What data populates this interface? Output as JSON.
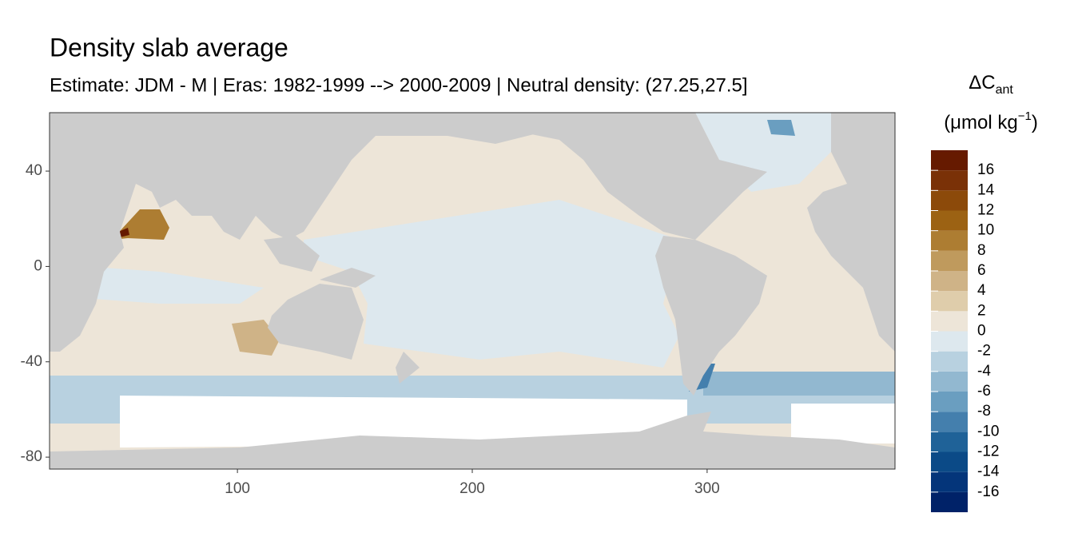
{
  "chart_data": {
    "type": "map",
    "title": "Density slab average",
    "subtitle": "Estimate: JDM - M | Eras: 1982-1999 --> 2000-2009 | Neutral density: (27.25,27.5]",
    "xlim": [
      20,
      380
    ],
    "xticks": [
      100,
      200,
      300
    ],
    "ylim": [
      -85,
      64.5
    ],
    "yticks": [
      -80,
      -40,
      0,
      40
    ],
    "colorbar": {
      "title": "ΔC",
      "title_sub": "ant",
      "unit_parts": [
        "(μmol kg",
        "−1",
        ")"
      ],
      "bins": [
        -18,
        -16,
        -14,
        -12,
        -10,
        -8,
        -6,
        -4,
        -2,
        0,
        2,
        4,
        6,
        8,
        10,
        12,
        14,
        16,
        18
      ],
      "colors": [
        "#002268",
        "#04357a",
        "#0b4a87",
        "#1f6298",
        "#447fad",
        "#6a9ec0",
        "#92b8d0",
        "#b8d1e0",
        "#dde8ee",
        "#ede5d8",
        "#dfcdab",
        "#cfb387",
        "#bf9a5d",
        "#ad7d32",
        "#9c6213",
        "#8c4a0a",
        "#7a3107",
        "#661a00"
      ],
      "ticks": [
        -16,
        -14,
        -12,
        -10,
        -8,
        -6,
        -4,
        -2,
        0,
        2,
        4,
        6,
        8,
        10,
        12,
        14,
        16
      ]
    }
  }
}
